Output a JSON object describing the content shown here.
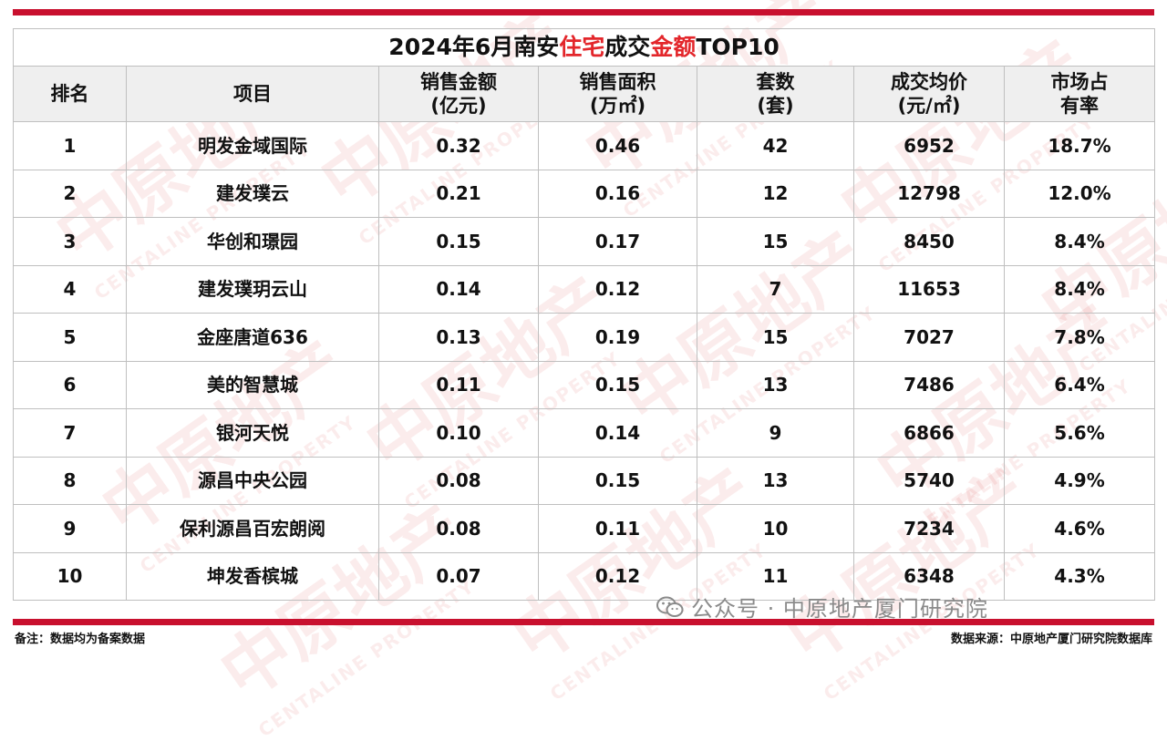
{
  "table": {
    "title": {
      "prefix": "2024年6月南安",
      "highlight1": "住宅",
      "middle": "成交",
      "highlight2": "金额",
      "suffix": "TOP10"
    },
    "headers": [
      {
        "l1": "排名",
        "l2": ""
      },
      {
        "l1": "项目",
        "l2": ""
      },
      {
        "l1": "销售金额",
        "l2": "(亿元)"
      },
      {
        "l1": "销售面积",
        "l2": "(万㎡)"
      },
      {
        "l1": "套数",
        "l2": "(套)"
      },
      {
        "l1": "成交均价",
        "l2": "(元/㎡)"
      },
      {
        "l1": "市场占",
        "l2": "有率"
      }
    ],
    "rows": [
      [
        "1",
        "明发金域国际",
        "0.32",
        "0.46",
        "42",
        "6952",
        "18.7%"
      ],
      [
        "2",
        "建发璞云",
        "0.21",
        "0.16",
        "12",
        "12798",
        "12.0%"
      ],
      [
        "3",
        "华创和璟园",
        "0.15",
        "0.17",
        "15",
        "8450",
        "8.4%"
      ],
      [
        "4",
        "建发璞玥云山",
        "0.14",
        "0.12",
        "7",
        "11653",
        "8.4%"
      ],
      [
        "5",
        "金座唐道636",
        "0.13",
        "0.19",
        "15",
        "7027",
        "7.8%"
      ],
      [
        "6",
        "美的智慧城",
        "0.11",
        "0.15",
        "13",
        "7486",
        "6.4%"
      ],
      [
        "7",
        "银河天悦",
        "0.10",
        "0.14",
        "9",
        "6866",
        "5.6%"
      ],
      [
        "8",
        "源昌中央公园",
        "0.08",
        "0.15",
        "13",
        "5740",
        "4.9%"
      ],
      [
        "9",
        "保利源昌百宏朗阅",
        "0.08",
        "0.11",
        "10",
        "7234",
        "4.6%"
      ],
      [
        "10",
        "坤发香槟城",
        "0.07",
        "0.12",
        "11",
        "6348",
        "4.3%"
      ]
    ]
  },
  "footer": {
    "note": "备注：数据均为备案数据",
    "source": "数据来源：中原地产厦门研究院数据库"
  },
  "wechat_overlay": "公众号 · 中原地产厦门研究院",
  "watermark": {
    "cn": "中原地产",
    "en": "CENTALINE PROPERTY"
  },
  "colors": {
    "accent": "#c8102e",
    "highlight": "#e3262b",
    "header_bg": "#efefef"
  }
}
